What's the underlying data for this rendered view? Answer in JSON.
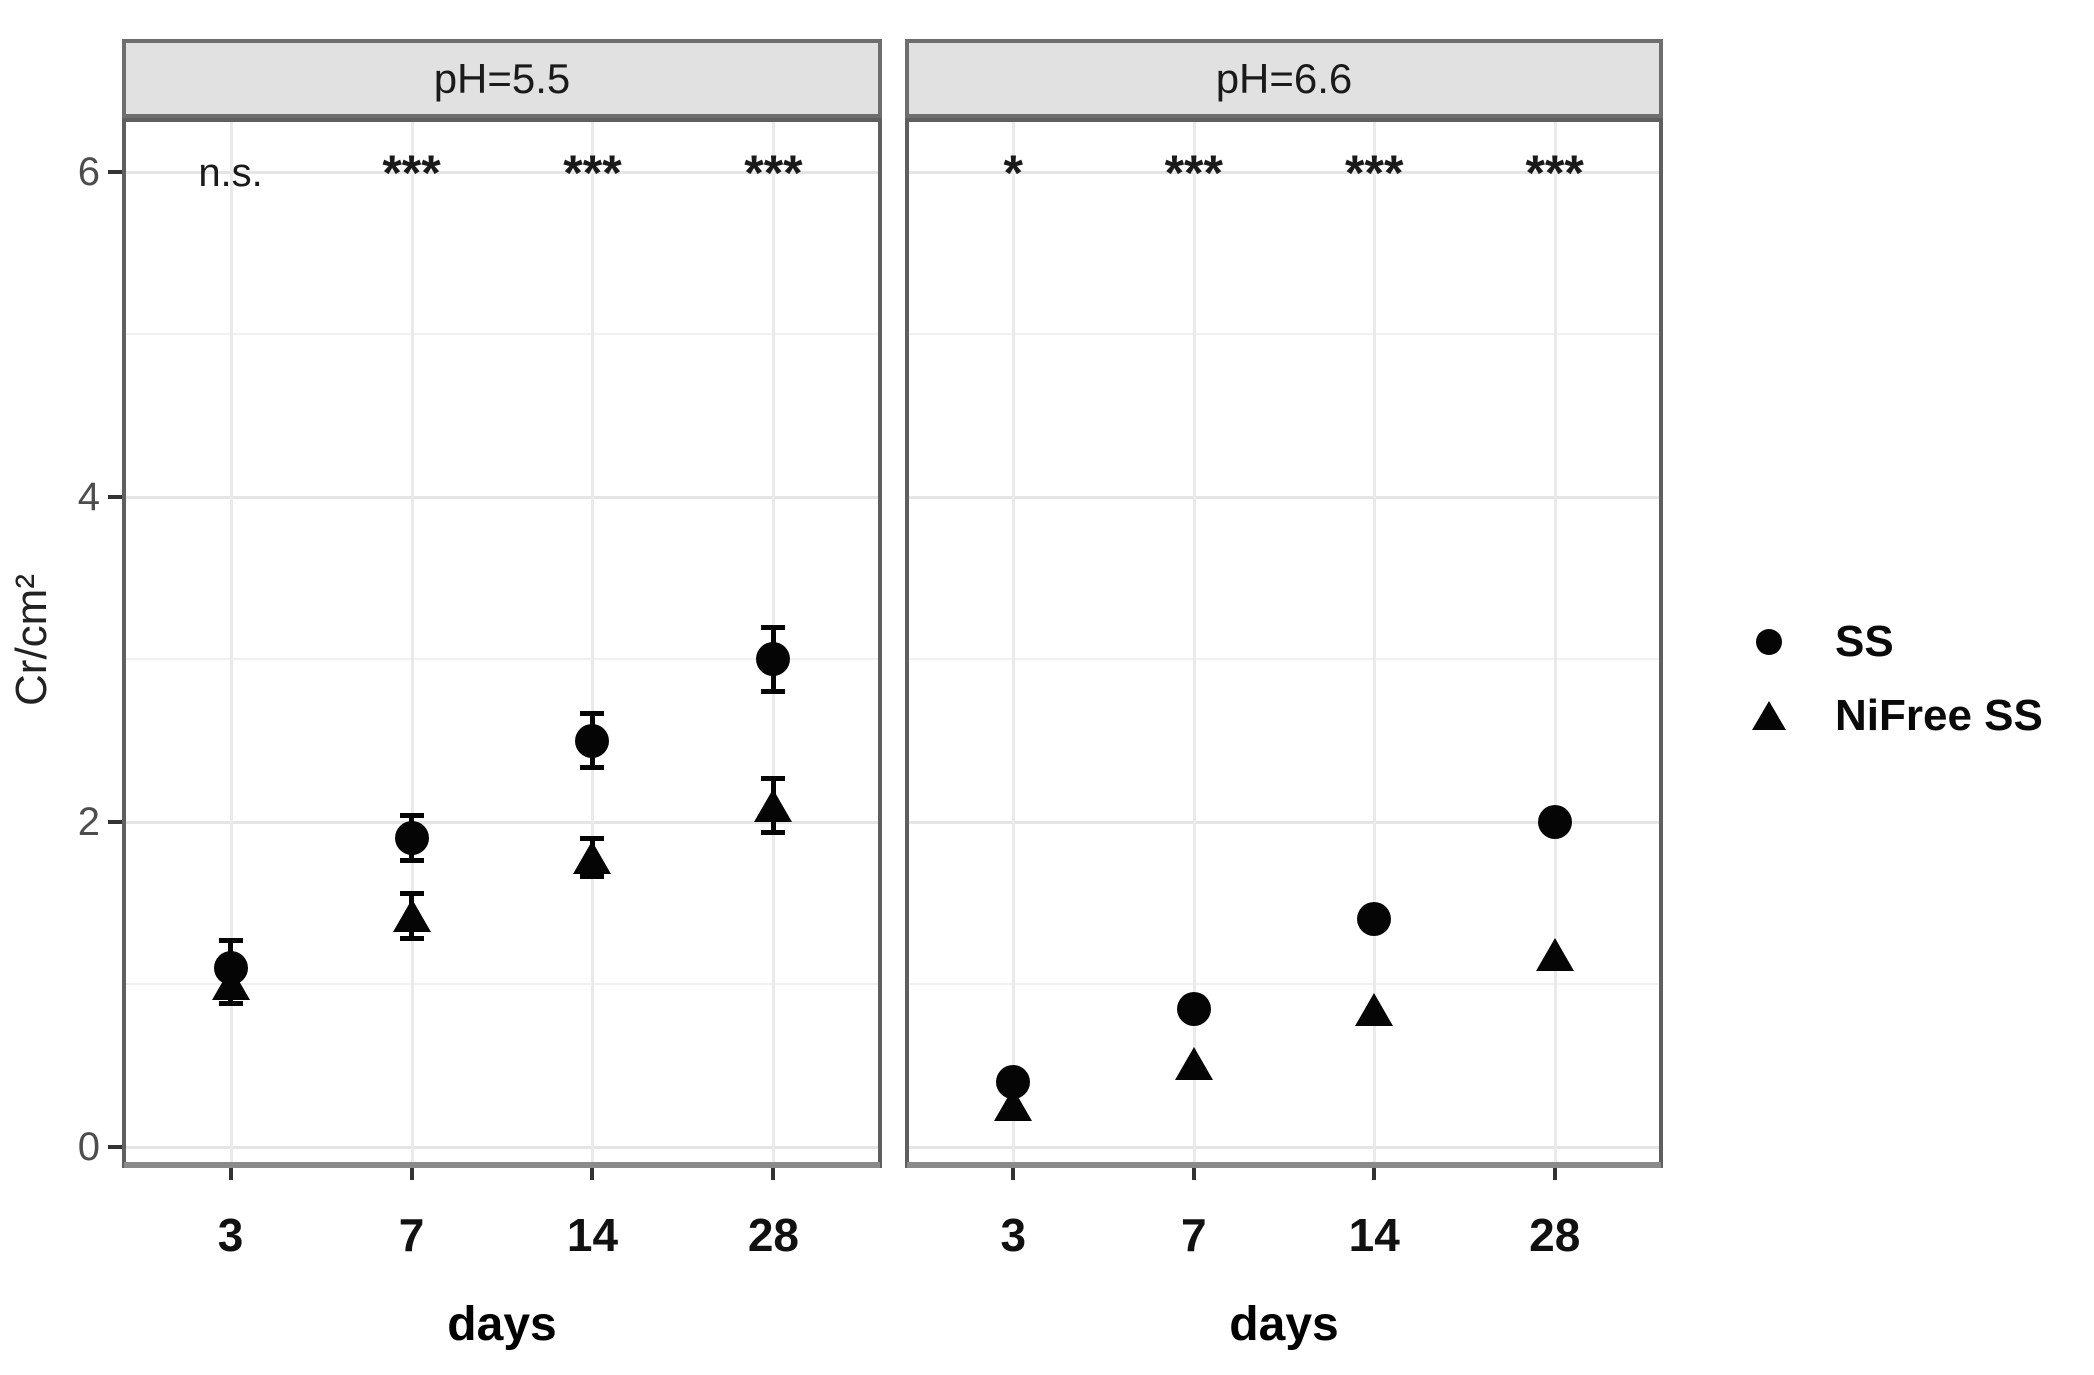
{
  "chart_data": {
    "type": "scatter",
    "title": "",
    "xlabel": "days",
    "ylabel": "Cr/cm²",
    "categories": [
      "3",
      "7",
      "14",
      "28"
    ],
    "yticks": [
      0,
      2,
      4,
      6
    ],
    "yminor": [
      1,
      3,
      5
    ],
    "ylim": [
      -0.13,
      6.33
    ],
    "grid": "horizontal major+minor, vertical major at categories",
    "legend_position": "right",
    "facets": [
      {
        "label": "pH=5.5",
        "significance": [
          "n.s.",
          "***",
          "***",
          "***"
        ],
        "series": [
          {
            "name": "SS",
            "marker": "circle",
            "values": [
              1.1,
              1.9,
              2.5,
              3.0
            ],
            "errors": [
              0.17,
              0.14,
              0.17,
              0.2
            ]
          },
          {
            "name": "NiFree SS",
            "marker": "triangle",
            "values": [
              1.0,
              1.42,
              1.78,
              2.1
            ],
            "errors": [
              0.12,
              0.14,
              0.12,
              0.17
            ]
          }
        ]
      },
      {
        "label": "pH=6.6",
        "significance": [
          "*",
          "***",
          "***",
          "***"
        ],
        "series": [
          {
            "name": "SS",
            "marker": "circle",
            "values": [
              0.4,
              0.85,
              1.4,
              2.0
            ],
            "errors": [
              0,
              0,
              0,
              0
            ]
          },
          {
            "name": "NiFree SS",
            "marker": "triangle",
            "values": [
              0.26,
              0.51,
              0.84,
              1.18
            ],
            "errors": [
              0,
              0,
              0,
              0
            ]
          }
        ]
      }
    ],
    "legend": [
      {
        "label": "SS",
        "marker": "circle"
      },
      {
        "label": "NiFree SS",
        "marker": "triangle"
      }
    ],
    "colors": {
      "point": "#050505",
      "strip_fill": "#e1e1e1",
      "strip_border": "#6e6e6e",
      "panel_border": "#5f5f5f",
      "axis_line": "#8a8a8a",
      "tick_mark": "#333333",
      "y_tick_text": "#4d4d4d",
      "x_tick_text": "#111111",
      "grid_major": "#e5e5e5",
      "grid_minor": "#f1f1f1",
      "background": "#ffffff"
    }
  }
}
